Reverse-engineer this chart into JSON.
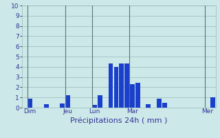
{
  "title": "Précipitations 24h ( mm )",
  "ylim": [
    0,
    10
  ],
  "yticks": [
    0,
    1,
    2,
    3,
    4,
    5,
    6,
    7,
    8,
    9,
    10
  ],
  "background_color": "#cce8e8",
  "bar_color": "#1a3fcc",
  "grid_color": "#99bbbb",
  "bar_values": [
    0,
    0.9,
    0,
    0,
    0.35,
    0,
    0,
    0.4,
    1.2,
    0,
    0,
    0,
    0,
    0.25,
    1.2,
    0,
    4.35,
    4.0,
    4.3,
    4.3,
    2.3,
    2.4,
    0,
    0.35,
    0,
    0.9,
    0.45,
    0,
    0,
    0,
    0,
    0,
    0,
    0,
    0,
    1.0
  ],
  "day_labels": [
    "Dim",
    "Jeu",
    "Lun",
    "Mar",
    "Mer"
  ],
  "day_positions": [
    1,
    8,
    13,
    20,
    34
  ],
  "n_bars": 36,
  "title_fontsize": 8,
  "tick_fontsize": 6.5,
  "vline_color": "#557777"
}
